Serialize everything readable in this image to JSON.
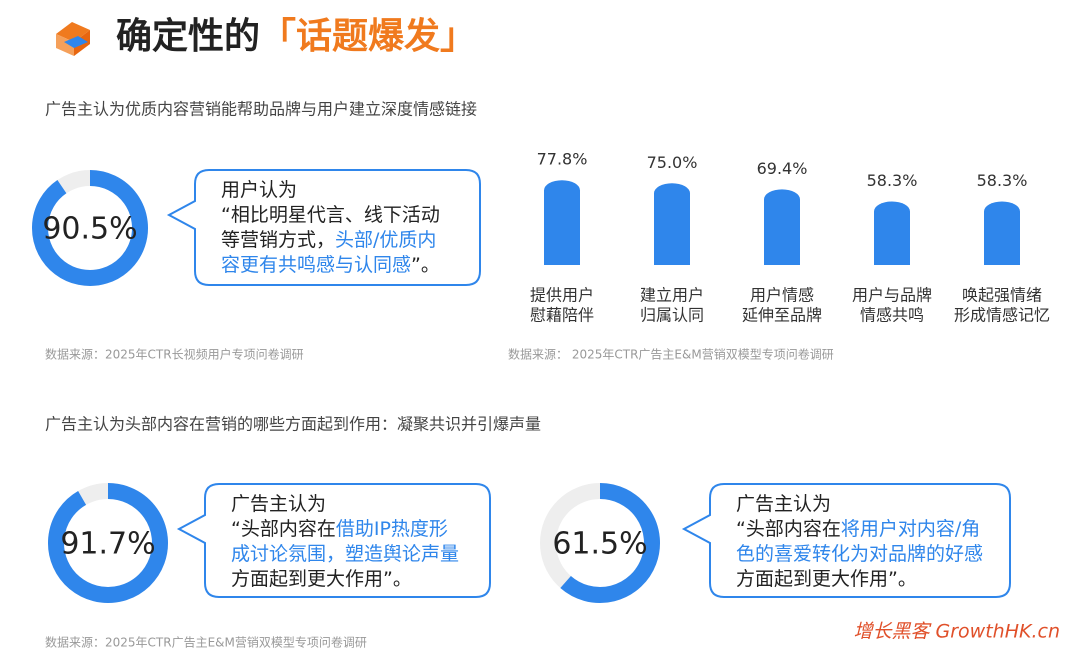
{
  "title": {
    "text": "确定性的",
    "highlight": "「话题爆发」"
  },
  "sections": [
    {
      "heading": "广告主认为优质内容营销能帮助品牌与用户建立深度情感链接"
    },
    {
      "heading": "广告主认为头部内容在营销的哪些方面起到作用：凝聚共识并引爆声量",
      "source": "数据来源：2025年CTR广告主E&M营销双模型专项问卷调研"
    }
  ],
  "watermark": "增长黑客 GrowthHK.cn",
  "chart_data": [
    {
      "type": "donut",
      "values": [
        90.5
      ],
      "value_labels": [
        "90.5%"
      ],
      "ylim": [
        0,
        100
      ],
      "color": "#2f86eb",
      "source": "数据来源：2025年CTR长视频用户专项问卷调研",
      "annotation": {
        "heading": "用户认为",
        "lines": [
          [
            {
              "text": "“相比明星代言、线下活动"
            }
          ],
          [
            {
              "text": "等营销方式，"
            },
            {
              "text": "头部/优质内",
              "highlight": true
            }
          ],
          [
            {
              "text": "容更有共鸣感与认同感",
              "highlight": true
            },
            {
              "text": "”。"
            }
          ]
        ]
      }
    },
    {
      "type": "bar",
      "categories": [
        [
          "提供用户",
          "慰藉陪伴"
        ],
        [
          "建立用户",
          "归属认同"
        ],
        [
          "用户情感",
          "延伸至品牌"
        ],
        [
          "用户与品牌",
          "情感共鸣"
        ],
        [
          "唤起强情绪",
          "形成情感记忆"
        ]
      ],
      "values": [
        77.8,
        75.0,
        69.4,
        58.3,
        58.3
      ],
      "value_labels": [
        "77.8%",
        "75.0%",
        "69.4%",
        "58.3%",
        "58.3%"
      ],
      "ylim": [
        0,
        100
      ],
      "color": "#2f86eb",
      "source": "数据来源： 2025年CTR广告主E&M营销双模型专项问卷调研"
    },
    {
      "type": "donut",
      "values": [
        91.7
      ],
      "value_labels": [
        "91.7%"
      ],
      "ylim": [
        0,
        100
      ],
      "color": "#2f86eb",
      "annotation": {
        "heading": "广告主认为",
        "lines": [
          [
            {
              "text": "“头部内容在"
            },
            {
              "text": "借助IP热度形",
              "highlight": true
            }
          ],
          [
            {
              "text": "成讨论氛围，塑造舆论声量",
              "highlight": true
            }
          ],
          [
            {
              "text": "方面起到更大作用”。"
            }
          ]
        ]
      }
    },
    {
      "type": "donut",
      "values": [
        61.5
      ],
      "value_labels": [
        "61.5%"
      ],
      "ylim": [
        0,
        100
      ],
      "color": "#2f86eb",
      "annotation": {
        "heading": "广告主认为",
        "lines": [
          [
            {
              "text": "“头部内容在"
            },
            {
              "text": "将用户对内容/角",
              "highlight": true
            }
          ],
          [
            {
              "text": "色的喜爱转化为对品牌的好感",
              "highlight": true
            }
          ],
          [
            {
              "text": "方面起到更大作用”。"
            }
          ]
        ]
      }
    }
  ]
}
